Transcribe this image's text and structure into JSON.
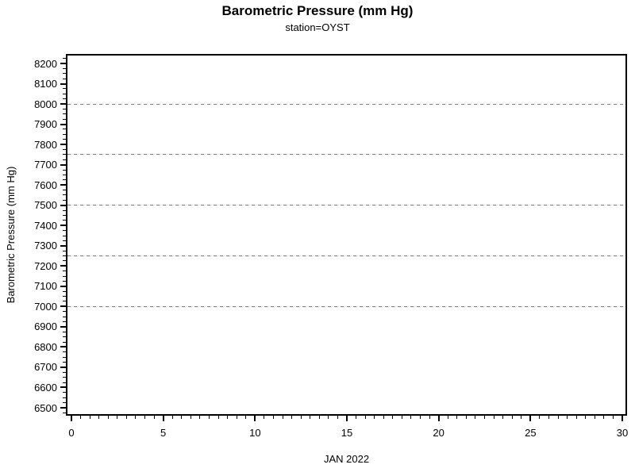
{
  "chart_data": {
    "type": "line",
    "title": "Barometric Pressure (mm Hg)",
    "subtitle": "station=OYST",
    "xlabel": "JAN 2022",
    "ylabel": "Barometric Pressure (mm Hg)",
    "xlim": [
      0,
      30
    ],
    "ylim": [
      6500,
      8200
    ],
    "x_major_ticks": [
      0,
      5,
      10,
      15,
      20,
      25,
      30
    ],
    "x_minor_step": 0.5,
    "y_major_ticks": [
      6500,
      6600,
      6700,
      6800,
      6900,
      7000,
      7100,
      7200,
      7300,
      7400,
      7500,
      7600,
      7700,
      7800,
      7900,
      8000,
      8100,
      8200
    ],
    "y_minor_step": 25,
    "y_reference_gridlines": [
      7000,
      7250,
      7500,
      7750,
      8000
    ],
    "grid_style": "dashed",
    "grid_color": "#808080",
    "axis_color": "#000000",
    "background_color": "#ffffff",
    "legend": null,
    "series": []
  }
}
